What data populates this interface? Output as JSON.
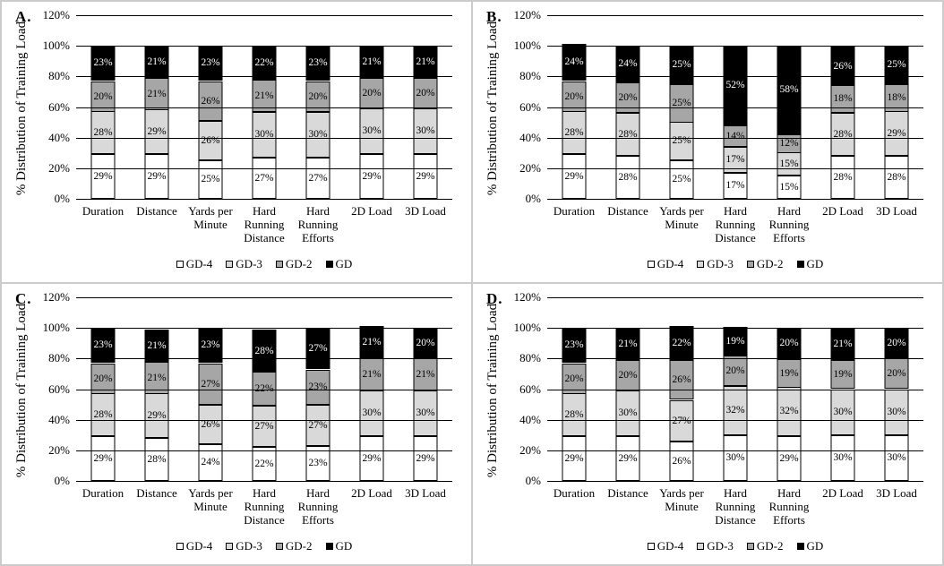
{
  "figure": {
    "panel_letters": [
      "A.",
      "B.",
      "C.",
      "D."
    ],
    "accent_colors": {
      "gd4": "#ffffff",
      "gd3": "#d9d9d9",
      "gd2": "#a6a6a6",
      "gd": "#000000"
    }
  },
  "chart_data": [
    {
      "type": "bar",
      "panel": "A.",
      "stacked": true,
      "title": "",
      "ylabel": "% Distribution of Training Load",
      "xlabel": "",
      "ylim": [
        0,
        120
      ],
      "yticks": [
        "0%",
        "20%",
        "40%",
        "60%",
        "80%",
        "100%",
        "120%"
      ],
      "grid": true,
      "legend_position": "bottom",
      "categories": [
        "Duration",
        "Distance",
        "Yards per Minute",
        "Hard Running Distance",
        "Hard Running Efforts",
        "2D Load",
        "3D Load"
      ],
      "series": [
        {
          "name": "GD-4",
          "color": "#ffffff",
          "values": [
            29,
            29,
            25,
            27,
            27,
            29,
            29
          ]
        },
        {
          "name": "GD-3",
          "color": "#d9d9d9",
          "values": [
            28,
            29,
            26,
            30,
            30,
            30,
            30
          ]
        },
        {
          "name": "GD-2",
          "color": "#a6a6a6",
          "values": [
            20,
            21,
            26,
            21,
            20,
            20,
            20
          ]
        },
        {
          "name": "GD",
          "color": "#000000",
          "values": [
            23,
            21,
            23,
            22,
            23,
            21,
            21
          ]
        }
      ]
    },
    {
      "type": "bar",
      "panel": "B.",
      "stacked": true,
      "title": "",
      "ylabel": "% Distribution of Training Load",
      "xlabel": "",
      "ylim": [
        0,
        120
      ],
      "yticks": [
        "0%",
        "20%",
        "40%",
        "60%",
        "80%",
        "100%",
        "120%"
      ],
      "grid": true,
      "legend_position": "bottom",
      "categories": [
        "Duration",
        "Distance",
        "Yards per Minute",
        "Hard Running Distance",
        "Hard Running Efforts",
        "2D Load",
        "3D Load"
      ],
      "series": [
        {
          "name": "GD-4",
          "color": "#ffffff",
          "values": [
            29,
            28,
            25,
            17,
            15,
            28,
            28
          ]
        },
        {
          "name": "GD-3",
          "color": "#d9d9d9",
          "values": [
            28,
            28,
            25,
            17,
            15,
            28,
            29
          ]
        },
        {
          "name": "GD-2",
          "color": "#a6a6a6",
          "values": [
            20,
            20,
            25,
            14,
            12,
            18,
            18
          ]
        },
        {
          "name": "GD",
          "color": "#000000",
          "values": [
            24,
            24,
            25,
            52,
            58,
            26,
            25
          ]
        }
      ]
    },
    {
      "type": "bar",
      "panel": "C.",
      "stacked": true,
      "title": "",
      "ylabel": "% Distribution of Training Load",
      "xlabel": "",
      "ylim": [
        0,
        120
      ],
      "yticks": [
        "0%",
        "20%",
        "40%",
        "60%",
        "80%",
        "100%",
        "120%"
      ],
      "grid": true,
      "legend_position": "bottom",
      "categories": [
        "Duration",
        "Distance",
        "Yards per Minute",
        "Hard Running Distance",
        "Hard Running Efforts",
        "2D Load",
        "3D Load"
      ],
      "series": [
        {
          "name": "GD-4",
          "color": "#ffffff",
          "values": [
            29,
            28,
            24,
            22,
            23,
            29,
            29
          ]
        },
        {
          "name": "GD-3",
          "color": "#d9d9d9",
          "values": [
            28,
            29,
            26,
            27,
            27,
            30,
            30
          ]
        },
        {
          "name": "GD-2",
          "color": "#a6a6a6",
          "values": [
            20,
            21,
            27,
            22,
            23,
            21,
            21
          ]
        },
        {
          "name": "GD",
          "color": "#000000",
          "values": [
            23,
            21,
            23,
            28,
            27,
            21,
            20
          ]
        }
      ]
    },
    {
      "type": "bar",
      "panel": "D.",
      "stacked": true,
      "title": "",
      "ylabel": "% Distribution of Training Load",
      "xlabel": "",
      "ylim": [
        0,
        120
      ],
      "yticks": [
        "0%",
        "20%",
        "40%",
        "60%",
        "80%",
        "100%",
        "120%"
      ],
      "grid": true,
      "legend_position": "bottom",
      "categories": [
        "Duration",
        "Distance",
        "Yards per Minute",
        "Hard Running Distance",
        "Hard Running Efforts",
        "2D Load",
        "3D Load"
      ],
      "series": [
        {
          "name": "GD-4",
          "color": "#ffffff",
          "values": [
            29,
            29,
            26,
            30,
            29,
            30,
            30
          ]
        },
        {
          "name": "GD-3",
          "color": "#d9d9d9",
          "values": [
            28,
            30,
            27,
            32,
            32,
            30,
            30
          ]
        },
        {
          "name": "GD-2",
          "color": "#a6a6a6",
          "values": [
            20,
            20,
            26,
            20,
            19,
            19,
            20
          ]
        },
        {
          "name": "GD",
          "color": "#000000",
          "values": [
            23,
            21,
            22,
            19,
            20,
            21,
            20
          ]
        }
      ]
    }
  ]
}
